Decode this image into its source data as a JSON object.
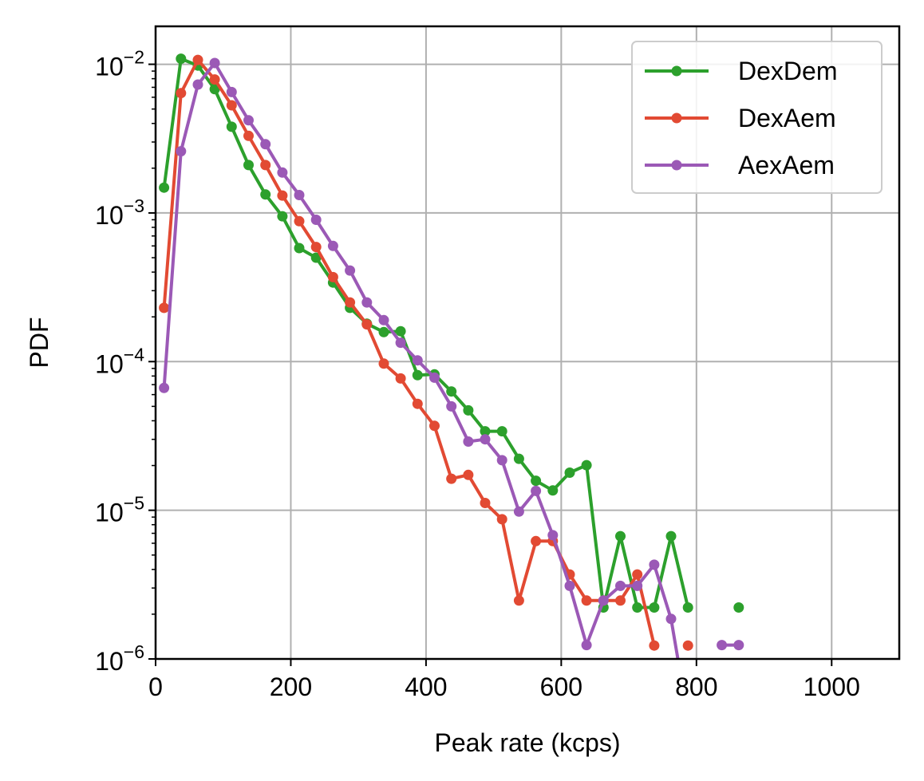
{
  "chart_data": {
    "type": "line",
    "xlabel": "Peak rate (kcps)",
    "ylabel": "PDF",
    "xlim": [
      0,
      1100
    ],
    "ylim": [
      1e-06,
      0.018
    ],
    "yscale": "log",
    "grid": true,
    "legend_position": "top-right",
    "x_ticks": [
      0,
      200,
      400,
      600,
      800,
      1000
    ],
    "y_ticks": [
      {
        "value": 1e-06,
        "base": "10",
        "exp": "−6"
      },
      {
        "value": 1e-05,
        "base": "10",
        "exp": "−5"
      },
      {
        "value": 0.0001,
        "base": "10",
        "exp": "−4"
      },
      {
        "value": 0.001,
        "base": "10",
        "exp": "−3"
      },
      {
        "value": 0.01,
        "base": "10",
        "exp": "−2"
      }
    ],
    "series": [
      {
        "name": "DexDem",
        "color": "#2ca02c",
        "x": [
          12.5,
          37.5,
          62.5,
          87.5,
          112.5,
          137.5,
          162.5,
          187.5,
          212.5,
          237.5,
          262.5,
          287.5,
          312.5,
          337.5,
          362.5,
          387.5,
          412.5,
          437.5,
          462.5,
          487.5,
          512.5,
          537.5,
          562.5,
          587.5,
          612.5,
          637.5,
          662.5,
          687.5,
          712.5,
          737.5,
          762.5,
          787.5,
          812.5,
          837.5,
          862.5
        ],
        "y": [
          0.00148,
          0.0109,
          0.0098,
          0.0068,
          0.0038,
          0.0021,
          0.00133,
          0.00095,
          0.00058,
          0.0005,
          0.00034,
          0.00023,
          0.00018,
          0.000158,
          0.00016,
          8.1e-05,
          8.2e-05,
          6.3e-05,
          4.7e-05,
          3.4e-05,
          3.4e-05,
          2.22e-05,
          1.58e-05,
          1.36e-05,
          1.79e-05,
          2.01e-05,
          2.22e-06,
          6.7e-06,
          2.22e-06,
          2.22e-06,
          6.7e-06,
          2.22e-06,
          null,
          null,
          2.22e-06
        ]
      },
      {
        "name": "DexAem",
        "color": "#e24a33",
        "x": [
          12.5,
          37.5,
          62.5,
          87.5,
          112.5,
          137.5,
          162.5,
          187.5,
          212.5,
          237.5,
          262.5,
          287.5,
          312.5,
          337.5,
          362.5,
          387.5,
          412.5,
          437.5,
          462.5,
          487.5,
          512.5,
          537.5,
          562.5,
          587.5,
          612.5,
          637.5,
          662.5,
          687.5,
          712.5,
          737.5,
          762.5,
          787.5
        ],
        "y": [
          0.00023,
          0.0064,
          0.0107,
          0.0079,
          0.0053,
          0.0033,
          0.0021,
          0.00131,
          0.00088,
          0.00059,
          0.00037,
          0.00025,
          0.000178,
          9.7e-05,
          7.7e-05,
          5.2e-05,
          3.7e-05,
          1.63e-05,
          1.73e-05,
          1.12e-05,
          8.7e-06,
          2.47e-06,
          6.2e-06,
          6.2e-06,
          3.7e-06,
          2.47e-06,
          2.47e-06,
          2.47e-06,
          3.7e-06,
          1.23e-06,
          null,
          1.23e-06
        ]
      },
      {
        "name": "AexAem",
        "color": "#9b59b6",
        "x": [
          12.5,
          37.5,
          62.5,
          87.5,
          112.5,
          137.5,
          162.5,
          187.5,
          212.5,
          237.5,
          262.5,
          287.5,
          312.5,
          337.5,
          362.5,
          387.5,
          412.5,
          437.5,
          462.5,
          487.5,
          512.5,
          537.5,
          562.5,
          587.5,
          612.5,
          637.5,
          662.5,
          687.5,
          712.5,
          737.5,
          762.5,
          787.5,
          812.5,
          837.5,
          862.5
        ],
        "y": [
          6.65e-05,
          0.0026,
          0.0073,
          0.0102,
          0.0065,
          0.0042,
          0.0029,
          0.00187,
          0.00132,
          0.0009,
          0.0006,
          0.00041,
          0.00025,
          0.00019,
          0.000134,
          0.000102,
          7.8e-05,
          5e-05,
          2.9e-05,
          3e-05,
          2.17e-05,
          9.8e-06,
          1.35e-05,
          6.8e-06,
          3.1e-06,
          1.24e-06,
          2.47e-06,
          3.1e-06,
          3.1e-06,
          4.3e-06,
          1.86e-06,
          4e-07,
          null,
          1.24e-06,
          1.24e-06
        ]
      }
    ]
  }
}
